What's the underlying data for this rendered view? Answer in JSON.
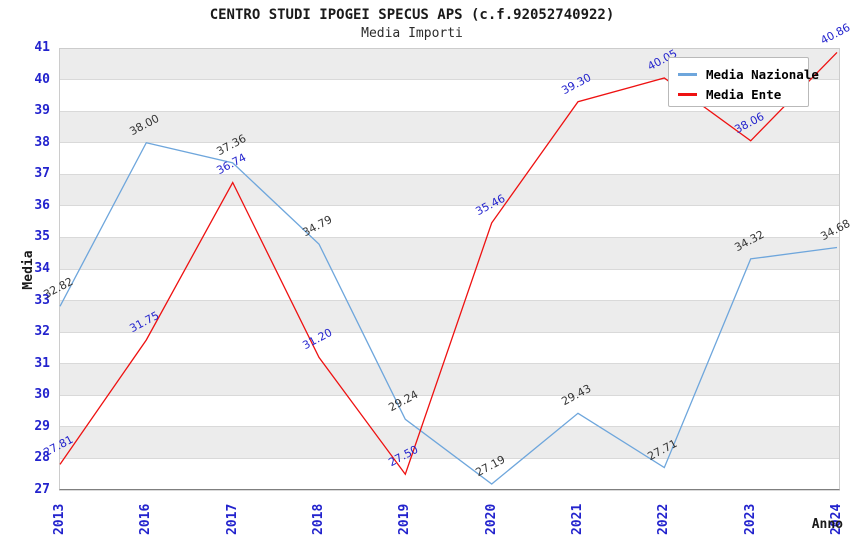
{
  "header": {
    "title": "CENTRO STUDI IPOGEI SPECUS APS (c.f.92052740922)",
    "subtitle": "Media Importi"
  },
  "chart_data": {
    "type": "line",
    "title": "CENTRO STUDI IPOGEI SPECUS APS (c.f.92052740922)",
    "subtitle": "Media Importi",
    "categories": [
      "2013",
      "2016",
      "2017",
      "2018",
      "2019",
      "2020",
      "2021",
      "2022",
      "2023",
      "2024"
    ],
    "series": [
      {
        "name": "Media Nazionale",
        "color": "#6ea6dc",
        "label_color": "#333333",
        "values": [
          32.82,
          38.0,
          37.36,
          34.79,
          29.24,
          27.19,
          29.43,
          27.71,
          34.32,
          34.68
        ]
      },
      {
        "name": "Media Ente",
        "color": "#ee1111",
        "label_color": "#2323cd",
        "values": [
          27.81,
          31.75,
          36.74,
          31.2,
          27.5,
          35.46,
          39.3,
          40.05,
          38.06,
          40.86
        ]
      }
    ],
    "xlabel": "Anno",
    "ylabel": "Media",
    "ylim": [
      27,
      41
    ],
    "ytick_step": 1,
    "grid": true,
    "legend_position": "upper-right",
    "tick_color": "#2323cd",
    "band_colors": [
      "#ececec",
      "#ffffff"
    ],
    "gridline_color": "#d9d9d9"
  }
}
